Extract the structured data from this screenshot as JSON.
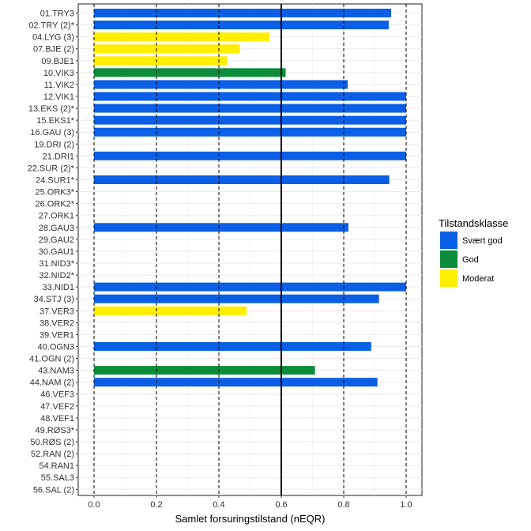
{
  "chart_data": {
    "type": "bar",
    "orientation": "horizontal",
    "xlabel": "Samlet forsuringstilstand (nEQR)",
    "ylabel": "",
    "xlim": [
      0,
      1.0
    ],
    "x_ticks": [
      "0.0",
      "0.2",
      "0.4",
      "0.6",
      "0.8",
      "1.0"
    ],
    "x_tick_values": [
      0,
      0.2,
      0.4,
      0.6,
      0.8,
      1.0
    ],
    "dashed_reference_lines": [
      0,
      0.2,
      0.4,
      0.8,
      1.0
    ],
    "solid_reference_line": 0.6,
    "grid": true,
    "legend": {
      "title": "Tilstandsklasse",
      "placement": "right",
      "entries": [
        {
          "label": "Svært god",
          "color": "#0A5FE6"
        },
        {
          "label": "God",
          "color": "#0B8C3A"
        },
        {
          "label": "Moderat",
          "color": "#FFEE00"
        }
      ]
    },
    "categories": [
      "01.TRY3",
      "02.TRY (2)*",
      "04.LYG (3)",
      "07.BJE (2)",
      "09.BJE1",
      "10.VIK3",
      "11.VIK2",
      "12.VIK1",
      "13.EKS (2)*",
      "15.EKS1*",
      "16.GAU (3)",
      "19.DRI (2)",
      "21.DRI1",
      "22.SUR (2)*",
      "24.SUR1*",
      "25.ORK3*",
      "26.ORK2*",
      "27.ORK1",
      "28.GAU3",
      "29.GAU2",
      "30.GAU1",
      "31.NID3*",
      "32.NID2*",
      "33.NID1",
      "34.STJ (3)",
      "37.VER3",
      "38.VER2",
      "39.VER1",
      "40.OGN3",
      "41.OGN (2)",
      "43.NAM3",
      "44.NAM (2)",
      "46.VEF3",
      "47.VEF2",
      "48.VEF1",
      "49.RØS3*",
      "50.RØS (2)",
      "52.RAN (2)",
      "54.RAN1",
      "55.SAL3",
      "56.SAL (2)"
    ],
    "values": [
      0.952,
      0.944,
      0.562,
      0.467,
      0.426,
      0.614,
      0.813,
      1.0,
      1.0,
      1.0,
      1.0,
      null,
      1.0,
      null,
      0.946,
      null,
      null,
      null,
      0.815,
      null,
      null,
      null,
      null,
      1.0,
      0.913,
      0.489,
      null,
      null,
      0.888,
      null,
      0.708,
      0.908,
      null,
      null,
      null,
      null,
      null,
      null,
      null,
      null,
      null
    ],
    "classes": [
      "Svært god",
      "Svært god",
      "Moderat",
      "Moderat",
      "Moderat",
      "God",
      "Svært god",
      "Svært god",
      "Svært god",
      "Svært god",
      "Svært god",
      null,
      "Svært god",
      null,
      "Svært god",
      null,
      null,
      null,
      "Svært god",
      null,
      null,
      null,
      null,
      "Svært god",
      "Svært god",
      "Moderat",
      null,
      null,
      "Svært god",
      null,
      "God",
      "Svært god",
      null,
      null,
      null,
      null,
      null,
      null,
      null,
      null,
      null
    ]
  }
}
